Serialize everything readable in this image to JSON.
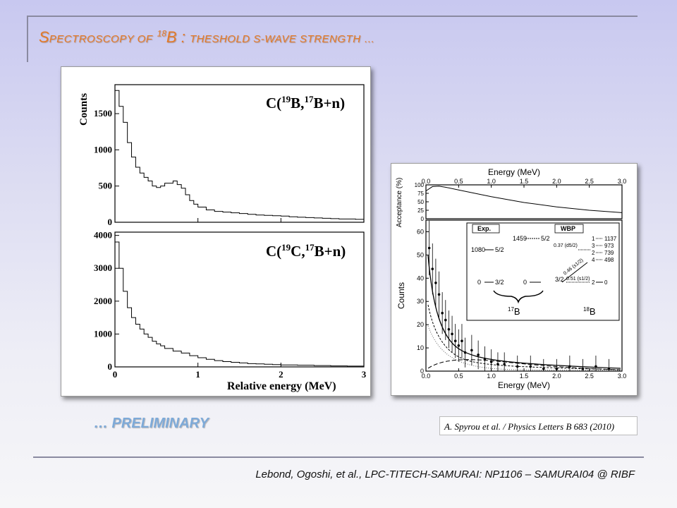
{
  "slide": {
    "title_main": "S",
    "title_rest": "PECTROSCOPY OF",
    "title_sup": "18",
    "title_nucleus": "B : ",
    "title_small": "theshold s-wave strength …",
    "preliminary": "… PRELIMINARY",
    "reference": "A. Spyrou et al. / Physics Letters B 683 (2010)",
    "footer": "Lebond, Ogoshi, et al., LPC-TITECH-SAMURAI: NP1106 – SAMURAI04 @ RIBF"
  },
  "left_figure": {
    "ylabel": "Counts",
    "xlabel": "Relative energy (MeV)",
    "top_label": "C(19B,17B+n)",
    "bottom_label": "C(19C,17B+n)",
    "top_yticks": [
      "500",
      "1000",
      "1500"
    ],
    "top_yzero": "0",
    "bottom_yticks": [
      "0",
      "1000",
      "2000",
      "3000",
      "4000"
    ],
    "xticks": [
      "0",
      "1",
      "2",
      "3"
    ]
  },
  "right_figure": {
    "top_xlabel": "Energy (MeV)",
    "top_xticks": [
      "0.0",
      "0.5",
      "1.0",
      "1.5",
      "2.0",
      "2.5",
      "3.0"
    ],
    "acc_ylabel": "Acceptance (%)",
    "acc_yticks": [
      "0",
      "25",
      "50",
      "75",
      "100"
    ],
    "ylabel": "Counts",
    "yticks": [
      "0",
      "10",
      "20",
      "30",
      "40",
      "50",
      "60"
    ],
    "xlabel": "Energy (MeV)",
    "xticks": [
      "0.0",
      "0.5",
      "1.0",
      "1.5",
      "2.0",
      "2.5",
      "3.0"
    ],
    "inset": {
      "exp": "Exp.",
      "wbp": "WBP",
      "b17": "17B",
      "b18": "18B",
      "left_levels": [
        [
          "1080",
          "5/2"
        ],
        [
          "0",
          "3/2"
        ]
      ],
      "mid_levels": [
        [
          "1459",
          "5/2"
        ],
        [
          "0",
          "3/2"
        ]
      ],
      "right_levels": [
        [
          "1",
          "1137"
        ],
        [
          "3",
          "973"
        ],
        [
          "2",
          "739"
        ],
        [
          "4",
          "498"
        ],
        [
          "2",
          "0"
        ]
      ],
      "transitions": [
        "0.37 (d5/2)",
        "0.46 (s1/2)",
        "0.51 (s1/2)"
      ]
    }
  },
  "chart_data": [
    {
      "type": "bar",
      "title": "C(19B,17B+n)",
      "xlabel": "Relative energy (MeV)",
      "ylabel": "Counts",
      "xlim": [
        0,
        3
      ],
      "ylim": [
        0,
        1900
      ],
      "x": [
        0.0,
        0.05,
        0.1,
        0.15,
        0.2,
        0.25,
        0.3,
        0.35,
        0.4,
        0.45,
        0.5,
        0.55,
        0.6,
        0.65,
        0.7,
        0.75,
        0.8,
        0.85,
        0.9,
        0.95,
        1.0,
        1.1,
        1.2,
        1.3,
        1.4,
        1.5,
        1.6,
        1.7,
        1.8,
        1.9,
        2.0,
        2.1,
        2.2,
        2.3,
        2.4,
        2.5,
        2.6,
        2.7,
        2.8,
        2.9
      ],
      "values": [
        1820,
        1600,
        1380,
        1100,
        900,
        760,
        680,
        620,
        570,
        500,
        480,
        500,
        540,
        540,
        570,
        520,
        470,
        380,
        300,
        250,
        210,
        170,
        150,
        140,
        130,
        120,
        110,
        100,
        95,
        90,
        85,
        75,
        70,
        65,
        60,
        55,
        50,
        45,
        45,
        40
      ]
    },
    {
      "type": "bar",
      "title": "C(19C,17B+n)",
      "xlabel": "Relative energy (MeV)",
      "ylabel": "Counts",
      "xlim": [
        0,
        3
      ],
      "ylim": [
        0,
        4100
      ],
      "x": [
        0.0,
        0.05,
        0.1,
        0.15,
        0.2,
        0.25,
        0.3,
        0.35,
        0.4,
        0.45,
        0.5,
        0.55,
        0.6,
        0.7,
        0.8,
        0.9,
        1.0,
        1.1,
        1.2,
        1.3,
        1.4,
        1.5,
        1.6,
        1.7,
        1.8,
        1.9,
        2.0,
        2.2,
        2.4,
        2.6,
        2.8
      ],
      "values": [
        3800,
        3000,
        2300,
        1800,
        1500,
        1300,
        1150,
        1000,
        900,
        780,
        700,
        640,
        560,
        480,
        420,
        340,
        280,
        230,
        190,
        160,
        140,
        120,
        100,
        90,
        80,
        70,
        60,
        50,
        40,
        30,
        25
      ]
    },
    {
      "type": "scatter",
      "xlabel": "Energy (MeV)",
      "ylabel": "Counts",
      "xlim": [
        0,
        3
      ],
      "ylim": [
        0,
        65
      ],
      "x": [
        0.05,
        0.1,
        0.15,
        0.2,
        0.25,
        0.3,
        0.35,
        0.4,
        0.45,
        0.5,
        0.55,
        0.6,
        0.7,
        0.8,
        0.9,
        1.0,
        1.1,
        1.2,
        1.4,
        1.6,
        1.8,
        2.0,
        2.2,
        2.4,
        2.6,
        2.8
      ],
      "y": [
        53,
        44,
        38,
        33,
        25,
        22,
        18,
        16,
        13,
        11,
        13,
        8,
        9,
        7,
        5,
        4,
        3,
        3,
        2,
        2,
        1,
        1,
        2,
        1,
        2,
        1
      ]
    },
    {
      "type": "line",
      "ylabel": "Acceptance (%)",
      "xlim": [
        0,
        3
      ],
      "ylim": [
        0,
        100
      ],
      "x": [
        0.0,
        0.1,
        0.2,
        0.3,
        0.5,
        0.75,
        1.0,
        1.5,
        2.0,
        2.5,
        3.0
      ],
      "y": [
        82,
        95,
        96,
        93,
        85,
        75,
        65,
        48,
        35,
        25,
        18
      ]
    }
  ]
}
